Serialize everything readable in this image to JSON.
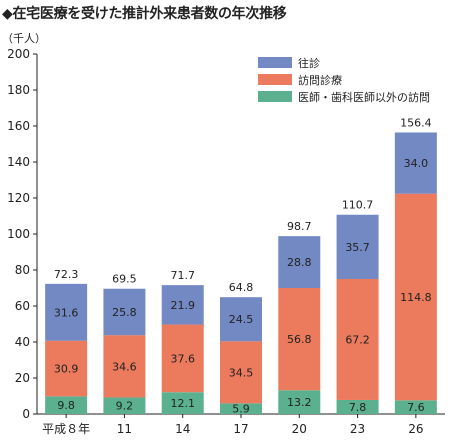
{
  "title": "◆在宅医療を受けた推計外来患者数の年次推移",
  "chart_data": {
    "type": "bar",
    "stacked": true,
    "unit_label": "（千人）",
    "categories": [
      "平成８年",
      "11",
      "14",
      "17",
      "20",
      "23",
      "26"
    ],
    "series": [
      {
        "name": "医師・歯科医師以外の訪問",
        "color": "#5bb08f",
        "values": [
          9.8,
          9.2,
          12.1,
          5.9,
          13.2,
          7.8,
          7.6
        ]
      },
      {
        "name": "訪問診療",
        "color": "#ec7a5c",
        "values": [
          30.9,
          34.6,
          37.6,
          34.5,
          56.8,
          67.2,
          114.8
        ]
      },
      {
        "name": "往診",
        "color": "#7389c4",
        "values": [
          31.6,
          25.8,
          21.9,
          24.5,
          28.8,
          35.7,
          34.0
        ]
      }
    ],
    "totals": [
      72.3,
      69.5,
      71.7,
      64.8,
      98.7,
      110.7,
      156.4
    ],
    "value_labels": [
      [
        "9.8",
        "9.2",
        "12.1",
        "5.9",
        "13.2",
        "7.8",
        "7.6"
      ],
      [
        "30.9",
        "34.6",
        "37.6",
        "34.5",
        "56.8",
        "67.2",
        "114.8"
      ],
      [
        "31.6",
        "25.8",
        "21.9",
        "24.5",
        "28.8",
        "35.7",
        "34.0"
      ]
    ],
    "total_labels": [
      "72.3",
      "69.5",
      "71.7",
      "64.8",
      "98.7",
      "110.7",
      "156.4"
    ],
    "yticks": [
      "0",
      "20",
      "40",
      "60",
      "80",
      "100",
      "120",
      "140",
      "160",
      "180",
      "200"
    ],
    "ylim": [
      0,
      200
    ],
    "legend_order": [
      "往診",
      "訪問診療",
      "医師・歯科医師以外の訪問"
    ],
    "legend_position": "top-right",
    "grid": false
  }
}
